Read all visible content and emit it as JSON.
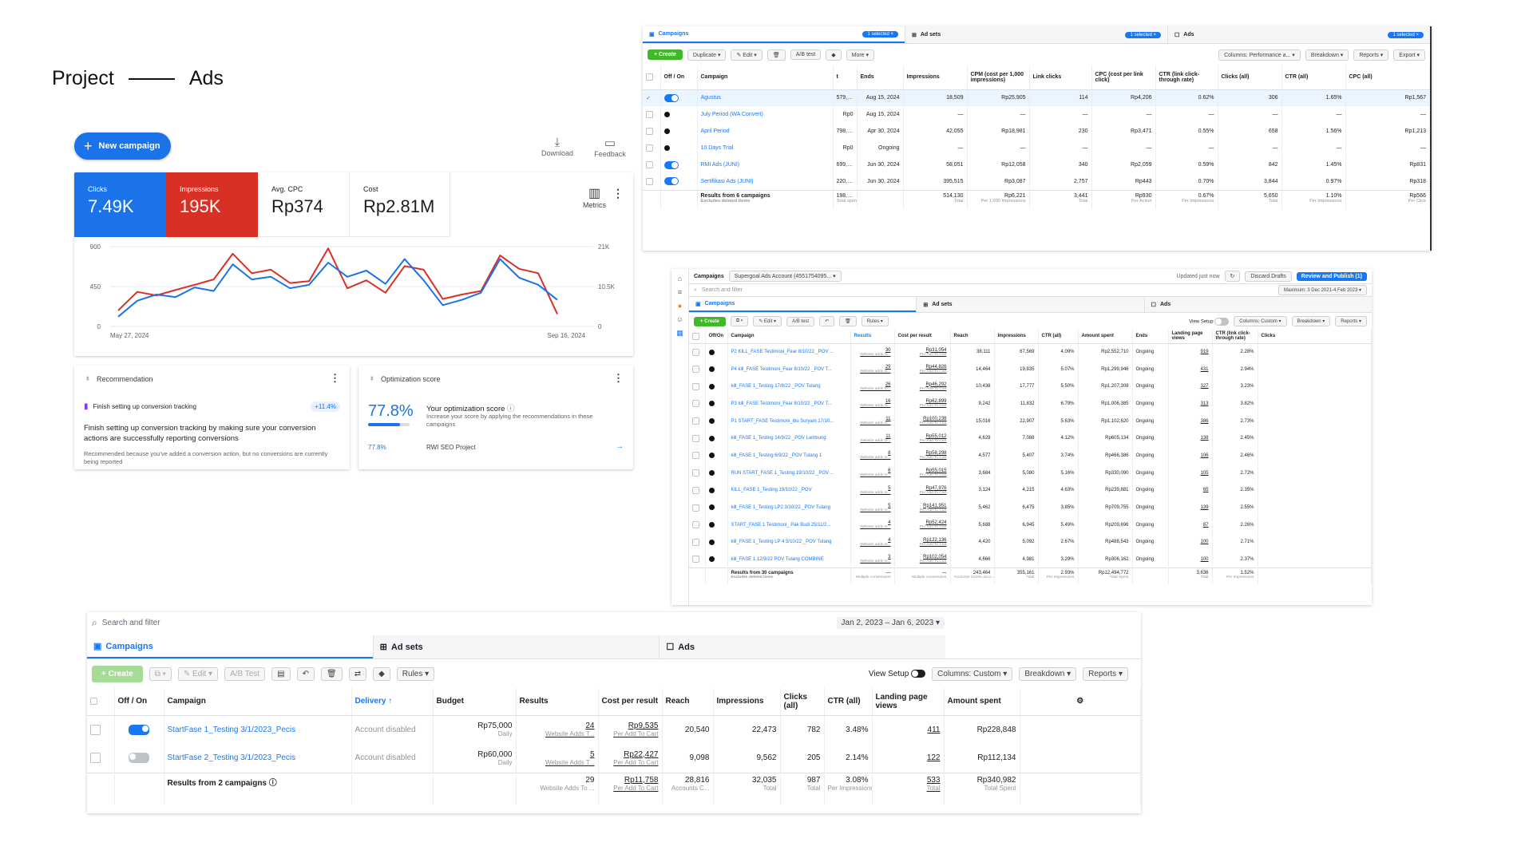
{
  "header": {
    "left": "Project",
    "right": "Ads"
  },
  "google_ads": {
    "new_campaign": "New campaign",
    "download": "Download",
    "feedback": "Feedback",
    "metrics_label": "Metrics",
    "metrics": [
      {
        "label": "Clicks",
        "value": "7.49K"
      },
      {
        "label": "Impressions",
        "value": "195K"
      },
      {
        "label": "Avg. CPC",
        "value": "Rp374"
      },
      {
        "label": "Cost",
        "value": "Rp2.81M"
      }
    ],
    "colors": {
      "clicks": "#1a73e8",
      "impressions": "#d93025"
    },
    "recommendation": {
      "title": "Recommendation",
      "item": "Finish setting up conversion tracking",
      "badge": "+11.4%",
      "heading": "Finish setting up conversion tracking by making sure your conversion actions are successfully reporting conversions",
      "note": "Recommended because you've added a conversion action, but no conversions are currently being reported"
    },
    "optimization": {
      "title": "Optimization score",
      "score": "77.8%",
      "score_value": 0.778,
      "heading": "Your optimization score",
      "desc": "Increase your score by applying the recommendations in these campaigns",
      "small_score": "77.8%",
      "project": "RWI SEO Project"
    }
  },
  "chart_data": {
    "type": "line",
    "x_labels": [
      "May 27, 2024",
      "Sep 16, 2024"
    ],
    "y_left": {
      "ticks": [
        "900",
        "450",
        "0"
      ],
      "range": [
        0,
        900
      ]
    },
    "y_right": {
      "ticks": [
        "21K",
        "10.5K",
        "0"
      ],
      "range": [
        0,
        21000
      ]
    },
    "series": [
      {
        "color": "#d93025",
        "values": [
          180,
          390,
          350,
          410,
          470,
          530,
          820,
          600,
          640,
          490,
          510,
          880,
          430,
          520,
          380,
          680,
          640,
          310,
          360,
          400,
          800,
          650,
          600,
          140
        ]
      },
      {
        "color": "#1a73e8",
        "values": [
          110,
          290,
          360,
          330,
          440,
          400,
          700,
          530,
          560,
          430,
          470,
          720,
          560,
          630,
          480,
          760,
          520,
          240,
          300,
          380,
          760,
          550,
          470,
          300
        ]
      }
    ]
  },
  "meta1": {
    "tabs": [
      {
        "label": "Campaigns",
        "pill": "1 selected ×"
      },
      {
        "label": "Ad sets",
        "pill": "1 selected ×"
      },
      {
        "label": "Ads",
        "pill": "1 selected ×"
      }
    ],
    "toolbar": {
      "create": "+ Create",
      "duplicate": "Duplicate",
      "edit": "Edit",
      "ab": "A/B test",
      "more": "More",
      "columns": "Columns: Performance a...",
      "breakdown": "Breakdown",
      "reports": "Reports",
      "export": "Export"
    },
    "headers": [
      "Off / On",
      "Campaign",
      "t",
      "Ends",
      "Impressions",
      "CPM (cost per 1,000 impressions)",
      "Link clicks",
      "CPC (cost per link click)",
      "CTR (link click-through rate)",
      "Clicks (all)",
      "CTR (all)",
      "CPC (all)"
    ],
    "rows": [
      {
        "on": true,
        "name": "Agustus",
        "c1": "579,472",
        "ends": "Aug 15, 2024",
        "imp": "18,509",
        "cpm": "Rp25,905",
        "lc": "114",
        "cpc": "Rp4,206",
        "ctr": "0.62%",
        "clk": "306",
        "ctra": "1.65%",
        "cpca": "Rp1,567"
      },
      {
        "on": false,
        "name": "July Period (WA Convert)",
        "c1": "Rp0",
        "ends": "Aug 15, 2024",
        "imp": "—",
        "cpm": "—",
        "lc": "—",
        "cpc": "—",
        "ctr": "—",
        "clk": "—",
        "ctra": "—",
        "cpca": "—"
      },
      {
        "on": false,
        "name": "April Period",
        "c1": "798,227",
        "ends": "Apr 30, 2024",
        "imp": "42,055",
        "cpm": "Rp18,981",
        "lc": "230",
        "cpc": "Rp3,471",
        "ctr": "0.55%",
        "clk": "658",
        "ctra": "1.56%",
        "cpca": "Rp1,213"
      },
      {
        "on": false,
        "name": "10 Days Trial",
        "c1": "Rp0",
        "ends": "Ongoing",
        "imp": "—",
        "cpm": "—",
        "lc": "—",
        "cpc": "—",
        "ctr": "—",
        "clk": "—",
        "ctra": "—",
        "cpca": "—"
      },
      {
        "on": true,
        "name": "RMI Ads (JUNI)",
        "c1": "699,967",
        "ends": "Jun 30, 2024",
        "imp": "58,051",
        "cpm": "Rp12,058",
        "lc": "340",
        "cpc": "Rp2,059",
        "ctr": "0.59%",
        "clk": "842",
        "ctra": "1.45%",
        "cpca": "Rp831"
      },
      {
        "on": true,
        "name": "Sertifikasi Ads (JUNI)",
        "c1": "220,946",
        "ends": "Jun 30, 2024",
        "imp": "395,515",
        "cpm": "Rp3,087",
        "lc": "2,757",
        "cpc": "Rp443",
        "ctr": "0.70%",
        "clk": "3,844",
        "ctra": "0.97%",
        "cpca": "Rp318"
      }
    ],
    "total": {
      "label": "Results from 6 campaigns",
      "sub": "Excludes deleted items",
      "c1": "198,612",
      "c1s": "Total spent",
      "imp": "514,130",
      "imps": "Total",
      "cpm": "Rp6,221",
      "cpms": "Per 1,000 Impressions",
      "lc": "3,441",
      "lcs": "Total",
      "cpc": "Rp930",
      "cpcs": "Per Action",
      "ctr": "0.67%",
      "ctrs": "Per Impressions",
      "clk": "5,650",
      "clks": "Total",
      "ctra": "1.10%",
      "ctras": "Per Impressions",
      "cpca": "Rp566",
      "cpcas": "Per Click"
    }
  },
  "meta2": {
    "top": {
      "campaigns": "Campaigns",
      "account": "Supergoal Ads Account (4551754095...",
      "updated": "Updated just now",
      "discard": "Discard Drafts",
      "review": "Review and Publish (1)",
      "search": "Search and filter",
      "date": "Maximum: 3 Dec 2021-4 Feb 2023"
    },
    "tabs": [
      "Campaigns",
      "Ad sets",
      "Ads"
    ],
    "toolbar": {
      "create": "+ Create",
      "edit": "Edit",
      "ab": "A/B test",
      "rules": "Rules",
      "view": "View Setup",
      "columns": "Columns: Custom",
      "breakdown": "Breakdown",
      "reports": "Reports"
    },
    "headers": [
      "Off/On",
      "Campaign",
      "Results",
      "Cost per result",
      "Reach",
      "Impressions",
      "CTR (all)",
      "Amount spent",
      "Ends",
      "Landing page views",
      "CTR (link click-through rate)",
      "Clicks"
    ],
    "rows": [
      {
        "name": "P2 KILL_FASE Testimoni_Fear 8/10/22 _POV ...",
        "res": "30",
        "cpr": "Rp31,054",
        "reach": "38,111",
        "imp": "67,569",
        "ctr": "4.09%",
        "amt": "Rp2,552,710",
        "ends": "Ongoing",
        "lpv": "919",
        "ctrl": "2.28%"
      },
      {
        "name": "P4 kill_FASE Testimoni_Fear 8/10/22 _POV T...",
        "res": "29",
        "cpr": "Rp44,826",
        "reach": "14,464",
        "imp": "19,835",
        "ctr": "5.07%",
        "amt": "Rp1,299,946",
        "ends": "Ongoing",
        "lpv": "431",
        "ctrl": "2.94%"
      },
      {
        "name": "kill_FASE 1_Testing 17/8/22 _POV Tulang",
        "res": "26",
        "cpr": "Rp46,292",
        "reach": "10,438",
        "imp": "17,777",
        "ctr": "5.50%",
        "amt": "Rp1,207,308",
        "ends": "Ongoing",
        "lpv": "327",
        "ctrl": "3.23%"
      },
      {
        "name": "P3 kill_FASE Testimoni_Fear 8/10/22 _POV T...",
        "res": "16",
        "cpr": "Rp62,899",
        "reach": "9,242",
        "imp": "11,832",
        "ctr": "6.79%",
        "amt": "Rp1,006,385",
        "ends": "Ongoing",
        "lpv": "313",
        "ctrl": "3.82%"
      },
      {
        "name": "P1 START_FASE Testimoni_ibu Suryani 17/10...",
        "res": "11",
        "cpr": "Rp100,238",
        "reach": "15,016",
        "imp": "22,907",
        "ctr": "5.63%",
        "amt": "Rp1,102,620",
        "ends": "Ongoing",
        "lpv": "386",
        "ctrl": "2.73%"
      },
      {
        "name": "kill_FASE 1_Testing 14/9/22 _POV Lambung",
        "res": "11",
        "cpr": "Rp55,012",
        "reach": "4,629",
        "imp": "7,088",
        "ctr": "4.12%",
        "amt": "Rp605,134",
        "ends": "Ongoing",
        "lpv": "138",
        "ctrl": "2.45%"
      },
      {
        "name": "kill_FASE 1_Testing 6/9/22 _POV Tulang 1",
        "res": "8",
        "cpr": "Rp58,298",
        "reach": "4,577",
        "imp": "5,407",
        "ctr": "3.74%",
        "amt": "Rp466,386",
        "ends": "Ongoing",
        "lpv": "106",
        "ctrl": "2.46%"
      },
      {
        "name": "RUN START_FASE 1_Testing 19/10/22 _POV ...",
        "res": "6",
        "cpr": "Rp55,015",
        "reach": "3,684",
        "imp": "5,080",
        "ctr": "5.16%",
        "amt": "Rp330,090",
        "ends": "Ongoing",
        "lpv": "105",
        "ctrl": "2.72%"
      },
      {
        "name": "KILL_FASE 1_Testing 19/10/22 _POV",
        "res": "5",
        "cpr": "Rp47,976",
        "reach": "3,124",
        "imp": "4,215",
        "ctr": "4.63%",
        "amt": "Rp239,881",
        "ends": "Ongoing",
        "lpv": "65",
        "ctrl": "2.35%"
      },
      {
        "name": "kill_FASE 1_Testing LP2 3/10/22 _POV Tulang",
        "res": "5",
        "cpr": "Rp141,951",
        "reach": "5,462",
        "imp": "6,475",
        "ctr": "3.85%",
        "amt": "Rp709,755",
        "ends": "Ongoing",
        "lpv": "139",
        "ctrl": "2.55%"
      },
      {
        "name": "START_FASE 1 Testimoni_ Pak Budi 25/11/2...",
        "res": "4",
        "cpr": "Rp52,424",
        "reach": "5,688",
        "imp": "6,945",
        "ctr": "5.49%",
        "amt": "Rp209,696",
        "ends": "Ongoing",
        "lpv": "87",
        "ctrl": "2.26%"
      },
      {
        "name": "kill_FASE 1_Testing LP 4 5/10/22 _POV Tulang",
        "res": "4",
        "cpr": "Rp122,136",
        "reach": "4,420",
        "imp": "5,092",
        "ctr": "2.67%",
        "amt": "Rp488,543",
        "ends": "Ongoing",
        "lpv": "100",
        "ctrl": "2.71%"
      },
      {
        "name": "kill_FASE 1 12/9/22 POV Tulang COMBINE",
        "res": "3",
        "cpr": "Rp102,054",
        "reach": "4,666",
        "imp": "4,981",
        "ctr": "3.29%",
        "amt": "Rp306,162",
        "ends": "Ongoing",
        "lpv": "100",
        "ctrl": "2.37%"
      }
    ],
    "row_sub_res": "Website adds to...",
    "row_sub_cpr": "Per Add To Cart",
    "total": {
      "label": "Results from 30 campaigns",
      "sub": "Excludes deleted items",
      "res": "—",
      "ress": "Multiple conversions",
      "cpr": "—",
      "cprs": "Multiple conversions",
      "reach": "243,464",
      "reachs": "Accounts Centre acco...",
      "imp": "355,161",
      "imps": "Total",
      "ctr": "2.93%",
      "ctrs": "Per Impressions",
      "amt": "Rp12,494,772",
      "amts": "Total Spent",
      "lpv": "3,636",
      "lpvs": "Total",
      "ctrl": "1.52%",
      "ctrls": "Per Impressions"
    }
  },
  "meta3": {
    "search": "Search and filter",
    "date": "Jan 2, 2023 – Jan 6, 2023",
    "tabs": [
      "Campaigns",
      "Ad sets",
      "Ads"
    ],
    "toolbar": {
      "create": "+ Create",
      "edit": "Edit",
      "ab": "A/B Test",
      "rules": "Rules",
      "view": "View Setup",
      "columns": "Columns: Custom",
      "breakdown": "Breakdown",
      "reports": "Reports"
    },
    "headers": [
      "Off / On",
      "Campaign",
      "Delivery ↑",
      "Budget",
      "Results",
      "Cost per result",
      "Reach",
      "Impressions",
      "Clicks (all)",
      "CTR (all)",
      "Landing page views",
      "Amount spent"
    ],
    "rows": [
      {
        "on": true,
        "name": "StartFase 1_Testing 3/1/2023_Pecis",
        "delivery": "Account disabled",
        "budget": "Rp75,000",
        "budget_sub": "Daily",
        "res": "24",
        "res_sub": "Website Adds T...",
        "cpr": "Rp9,535",
        "cpr_sub": "Per Add To Cart",
        "reach": "20,540",
        "imp": "22,473",
        "clk": "782",
        "ctr": "3.48%",
        "lpv": "411",
        "amt": "Rp228,848"
      },
      {
        "on": false,
        "name": "StartFase 2_Testing 3/1/2023_Pecis",
        "delivery": "Account disabled",
        "budget": "Rp60,000",
        "budget_sub": "Daily",
        "res": "5",
        "res_sub": "Website Adds T...",
        "cpr": "Rp22,427",
        "cpr_sub": "Per Add To Cart",
        "reach": "9,098",
        "imp": "9,562",
        "clk": "205",
        "ctr": "2.14%",
        "lpv": "122",
        "amt": "Rp112,134"
      }
    ],
    "total": {
      "label": "Results from 2 campaigns",
      "res": "29",
      "ress": "Website Adds To ...",
      "cpr": "Rp11,758",
      "cprs": "Per Add To Cart",
      "reach": "28,816",
      "reachs": "Accounts C...",
      "imp": "32,035",
      "imps": "Total",
      "clk": "987",
      "clks": "Total",
      "ctr": "3.08%",
      "ctrs": "Per Impressions",
      "lpv": "533",
      "lpvs": "Total",
      "amt": "Rp340,982",
      "amts": "Total Spent"
    }
  }
}
